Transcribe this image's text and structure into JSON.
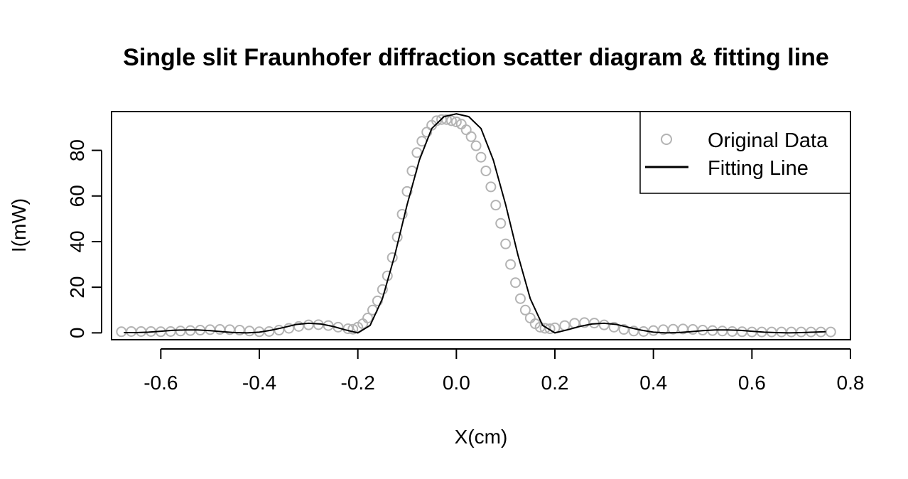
{
  "chart_data": {
    "type": "scatter",
    "title": "Single slit Fraunhofer diffraction scatter diagram & fitting line",
    "xlabel": "X(cm)",
    "ylabel": "I(mW)",
    "xlim": [
      -0.7,
      0.8
    ],
    "ylim": [
      -3,
      97
    ],
    "x_ticks": [
      -0.6,
      -0.4,
      -0.2,
      0.0,
      0.2,
      0.4,
      0.6,
      0.8
    ],
    "x_tick_labels": [
      "-0.6",
      "-0.4",
      "-0.2",
      "0.0",
      "0.2",
      "0.4",
      "0.6",
      "0.8"
    ],
    "y_ticks": [
      0,
      20,
      40,
      60,
      80
    ],
    "y_tick_labels": [
      "0",
      "20",
      "40",
      "60",
      "80"
    ],
    "legend_position": "top-right",
    "series": [
      {
        "name": "Original Data",
        "kind": "points",
        "marker": "open-circle",
        "color": "#b3b3b3",
        "x": [
          -0.68,
          -0.66,
          -0.64,
          -0.62,
          -0.6,
          -0.58,
          -0.56,
          -0.54,
          -0.52,
          -0.5,
          -0.48,
          -0.46,
          -0.44,
          -0.42,
          -0.4,
          -0.38,
          -0.36,
          -0.34,
          -0.32,
          -0.3,
          -0.28,
          -0.26,
          -0.24,
          -0.22,
          -0.21,
          -0.2,
          -0.19,
          -0.18,
          -0.17,
          -0.16,
          -0.15,
          -0.14,
          -0.13,
          -0.12,
          -0.11,
          -0.1,
          -0.09,
          -0.08,
          -0.07,
          -0.06,
          -0.05,
          -0.04,
          -0.03,
          -0.02,
          -0.01,
          0.0,
          0.01,
          0.02,
          0.03,
          0.04,
          0.05,
          0.06,
          0.07,
          0.08,
          0.09,
          0.1,
          0.11,
          0.12,
          0.13,
          0.14,
          0.15,
          0.16,
          0.17,
          0.18,
          0.19,
          0.2,
          0.22,
          0.24,
          0.26,
          0.28,
          0.3,
          0.32,
          0.34,
          0.36,
          0.38,
          0.4,
          0.42,
          0.44,
          0.46,
          0.48,
          0.5,
          0.52,
          0.54,
          0.56,
          0.58,
          0.6,
          0.62,
          0.64,
          0.66,
          0.68,
          0.7,
          0.72,
          0.74,
          0.76
        ],
        "y": [
          0.5,
          0.6,
          0.6,
          0.6,
          0.5,
          0.6,
          0.8,
          1.0,
          1.2,
          1.4,
          1.5,
          1.4,
          1.2,
          0.8,
          0.5,
          0.6,
          1.2,
          2.0,
          2.8,
          3.5,
          3.6,
          3.2,
          2.5,
          1.8,
          1.6,
          2.5,
          4.0,
          6.5,
          10.0,
          14.0,
          19.0,
          25.0,
          33.0,
          42.0,
          52.0,
          62.0,
          71.0,
          79.0,
          84.0,
          88.0,
          91.0,
          93.0,
          93.5,
          93.5,
          93.0,
          92.5,
          91.5,
          89.0,
          86.0,
          82.0,
          77.0,
          71.0,
          64.0,
          56.0,
          48.0,
          39.0,
          30.0,
          22.0,
          15.0,
          10.0,
          6.5,
          4.0,
          2.5,
          2.0,
          1.8,
          2.2,
          3.2,
          4.2,
          4.5,
          4.3,
          3.5,
          2.5,
          1.5,
          0.8,
          0.6,
          1.0,
          1.4,
          1.6,
          1.7,
          1.5,
          1.2,
          1.0,
          0.8,
          0.6,
          0.5,
          0.4,
          0.4,
          0.4,
          0.4,
          0.4,
          0.4,
          0.4,
          0.4,
          0.4
        ]
      },
      {
        "name": "Fitting Line",
        "kind": "line",
        "color": "#000000",
        "x": [
          -0.675,
          -0.65,
          -0.625,
          -0.6,
          -0.575,
          -0.55,
          -0.525,
          -0.5,
          -0.475,
          -0.45,
          -0.425,
          -0.4,
          -0.375,
          -0.35,
          -0.325,
          -0.3,
          -0.275,
          -0.25,
          -0.225,
          -0.2,
          -0.175,
          -0.15,
          -0.125,
          -0.1,
          -0.075,
          -0.05,
          -0.025,
          0.0,
          0.025,
          0.05,
          0.075,
          0.1,
          0.125,
          0.15,
          0.175,
          0.2,
          0.225,
          0.25,
          0.275,
          0.3,
          0.325,
          0.35,
          0.375,
          0.4,
          0.425,
          0.45,
          0.475,
          0.5,
          0.525,
          0.55,
          0.575,
          0.6,
          0.625,
          0.65,
          0.675,
          0.7,
          0.725,
          0.75
        ],
        "y": [
          0.1,
          0.1,
          0.3,
          0.7,
          1.1,
          1.3,
          1.3,
          1.0,
          0.5,
          0.1,
          0.0,
          0.3,
          1.2,
          2.4,
          3.7,
          4.2,
          3.9,
          2.8,
          1.3,
          0.0,
          3.3,
          15.0,
          34.1,
          56.2,
          75.8,
          89.6,
          94.8,
          96.0,
          94.8,
          89.6,
          75.8,
          56.2,
          34.1,
          15.0,
          3.3,
          0.0,
          1.3,
          2.8,
          3.9,
          4.2,
          3.7,
          2.4,
          1.2,
          0.3,
          0.0,
          0.1,
          0.5,
          1.0,
          1.3,
          1.3,
          1.1,
          0.7,
          0.3,
          0.1,
          0.0,
          0.1,
          0.3,
          0.5
        ]
      }
    ]
  }
}
